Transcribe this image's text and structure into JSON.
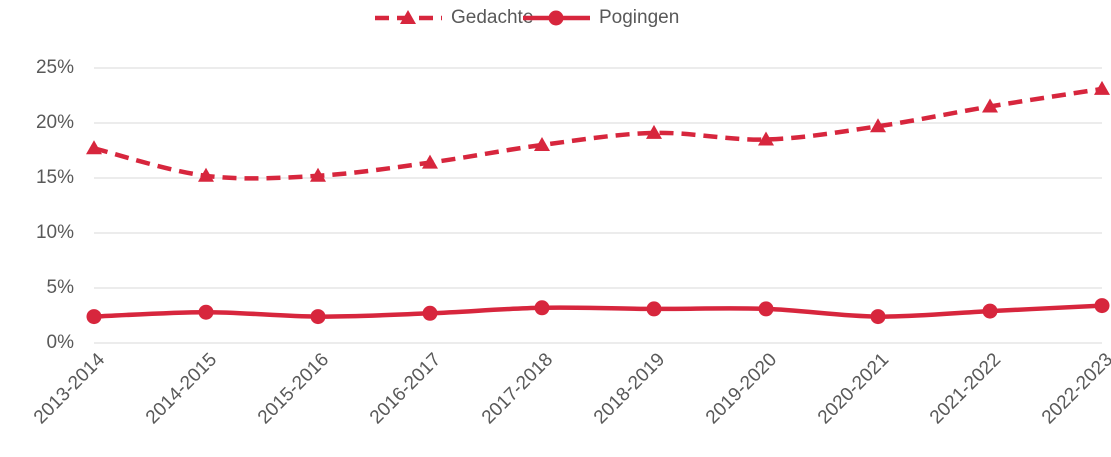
{
  "chart_data": {
    "type": "line",
    "categories": [
      "2013-2014",
      "2014-2015",
      "2015-2016",
      "2016-2017",
      "2017-2018",
      "2018-2019",
      "2019-2020",
      "2020-2021",
      "2021-2022",
      "2022-2023"
    ],
    "series": [
      {
        "name": "Gedachte",
        "color": "#d7263d",
        "style": "dashed",
        "marker": "triangle",
        "values": [
          17.7,
          15.2,
          15.2,
          16.4,
          18.0,
          19.1,
          18.5,
          19.7,
          21.5,
          23.1
        ]
      },
      {
        "name": "Pogingen",
        "color": "#d7263d",
        "style": "solid",
        "marker": "circle",
        "values": [
          2.4,
          2.8,
          2.4,
          2.7,
          3.2,
          3.1,
          3.1,
          2.4,
          2.9,
          3.4
        ]
      }
    ],
    "ylim": [
      0,
      25
    ],
    "yticks": [
      {
        "value": 0,
        "label": "0%"
      },
      {
        "value": 5,
        "label": "5%"
      },
      {
        "value": 10,
        "label": "10%"
      },
      {
        "value": 15,
        "label": "15%"
      },
      {
        "value": 20,
        "label": "20%"
      },
      {
        "value": 25,
        "label": "25%"
      }
    ],
    "grid": true,
    "smooth": true,
    "legend": "top"
  }
}
